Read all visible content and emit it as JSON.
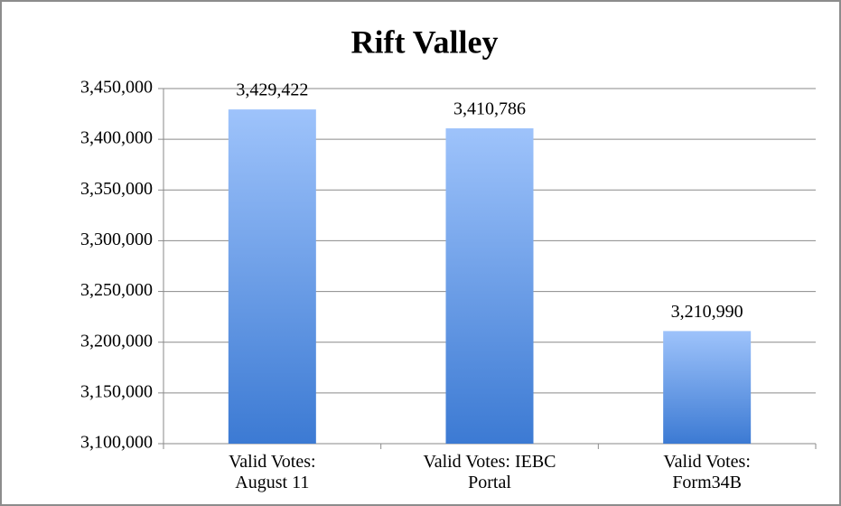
{
  "chart_data": {
    "type": "bar",
    "title": "Rift Valley",
    "categories": [
      "Valid Votes:\nAugust 11",
      "Valid Votes: IEBC\nPortal",
      "Valid Votes:\nForm34B"
    ],
    "values": [
      3429422,
      3410786,
      3210990
    ],
    "value_labels": [
      "3,429,422",
      "3,410,786",
      "3,210,990"
    ],
    "color": "#5b92e0",
    "ylim": [
      3100000,
      3450000
    ],
    "yticks": [
      {
        "value": 3100000,
        "label": "3,100,000"
      },
      {
        "value": 3150000,
        "label": "3,150,000"
      },
      {
        "value": 3200000,
        "label": "3,200,000"
      },
      {
        "value": 3250000,
        "label": "3,250,000"
      },
      {
        "value": 3300000,
        "label": "3,300,000"
      },
      {
        "value": 3350000,
        "label": "3,350,000"
      },
      {
        "value": 3400000,
        "label": "3,400,000"
      },
      {
        "value": 3450000,
        "label": "3,450,000"
      }
    ],
    "grid": true
  }
}
